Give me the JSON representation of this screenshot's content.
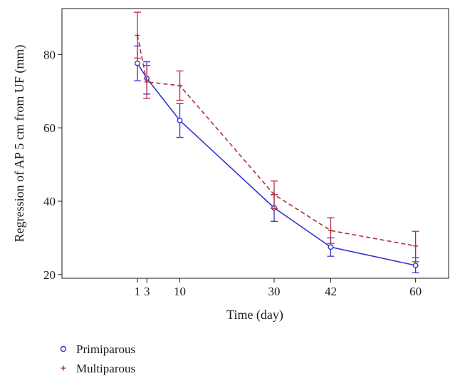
{
  "chart_data": {
    "type": "line",
    "title": "",
    "xlabel": "Time (day)",
    "ylabel": "Regression of AP 5 cm from UF (mm)",
    "x_ticks": [
      1,
      3,
      10,
      30,
      42,
      60
    ],
    "x_tick_labels": [
      "1",
      "3",
      "10",
      "30",
      "42",
      "60"
    ],
    "y_ticks": [
      20,
      40,
      60,
      80
    ],
    "y_tick_labels": [
      "20",
      "40",
      "60",
      "80"
    ],
    "xlim": [
      -15,
      67
    ],
    "ylim": [
      19,
      92.5
    ],
    "grid": false,
    "legend_position": "bottom-left",
    "series": [
      {
        "name": "Primiparous",
        "color": "#3333cc",
        "line_style": "solid",
        "marker": "circle",
        "x": [
          1,
          3,
          10,
          30,
          42,
          60
        ],
        "values": [
          77.6,
          73.5,
          62.0,
          38.2,
          27.5,
          22.5
        ],
        "err_low": [
          72.8,
          69.2,
          57.4,
          34.5,
          25.0,
          20.5
        ],
        "err_high": [
          82.3,
          78.0,
          66.6,
          41.8,
          30.0,
          24.6
        ]
      },
      {
        "name": "Multiparous",
        "color": "#b22d3c",
        "line_style": "dashed",
        "marker": "plus",
        "x": [
          1,
          3,
          10,
          30,
          42,
          60
        ],
        "values": [
          85.2,
          72.5,
          71.5,
          41.8,
          32.0,
          27.8
        ],
        "err_low": [
          79.0,
          68.0,
          67.5,
          38.0,
          28.5,
          23.5
        ],
        "err_high": [
          91.5,
          77.0,
          75.5,
          45.5,
          35.5,
          31.8
        ]
      }
    ]
  }
}
